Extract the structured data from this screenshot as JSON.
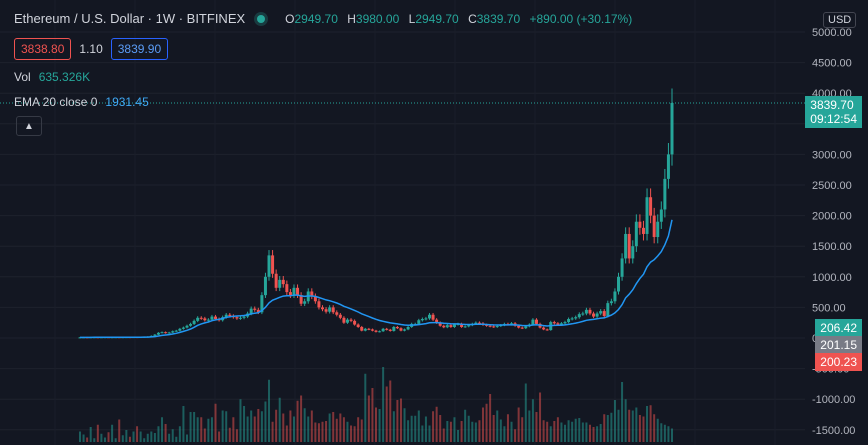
{
  "header": {
    "symbol_title": "Ethereum / U.S. Dollar · 1W · BITFINEX",
    "ohlc": {
      "o_label": "O",
      "o": "2949.70",
      "h_label": "H",
      "h": "3980.00",
      "l_label": "L",
      "l": "2949.70",
      "c_label": "C",
      "c": "3839.70",
      "change": "+890.00 (+30.17%)"
    },
    "bid": "3838.80",
    "spread": "1.10",
    "ask": "3839.90",
    "currency_button": "USD"
  },
  "indicators": {
    "vol_label": "Vol",
    "vol_value": "635.326K",
    "ema_label": "EMA 20 close 0",
    "ema_value": "1931.45"
  },
  "price_axis": {
    "last_price": "3839.70",
    "countdown": "09:12:54",
    "tag_green": "206.42",
    "tag_gray": "201.15",
    "tag_red": "200.23"
  },
  "colors": {
    "up": "#26a69a",
    "down": "#ef5350",
    "ema": "#2196f3",
    "background": "#131722"
  },
  "icons": {
    "collapse": "chevron-up-icon",
    "live": "live-dot-icon"
  },
  "chart_data": {
    "type": "candlestick",
    "ylim": [
      -1600,
      5100
    ],
    "y_ticks": [
      "5000.00",
      "4500.00",
      "4000.00",
      "3500.00",
      "3000.00",
      "2500.00",
      "2000.00",
      "1500.00",
      "1000.00",
      "500.00",
      "0.00",
      "-500.00",
      "-1000.00",
      "-1500.00"
    ],
    "close": [
      10,
      11,
      9,
      12,
      12,
      11,
      12,
      13,
      11,
      12,
      13,
      12,
      13,
      14,
      13,
      15,
      14,
      16,
      18,
      22,
      35,
      55,
      85,
      95,
      80,
      90,
      110,
      120,
      150,
      170,
      200,
      230,
      280,
      330,
      320,
      290,
      300,
      350,
      310,
      290,
      340,
      380,
      360,
      340,
      320,
      330,
      350,
      400,
      480,
      460,
      420,
      700,
      1000,
      1350,
      1050,
      820,
      950,
      880,
      750,
      700,
      820,
      700,
      560,
      600,
      760,
      680,
      600,
      500,
      470,
      430,
      500,
      420,
      380,
      330,
      250,
      300,
      280,
      220,
      180,
      120,
      150,
      140,
      120,
      100,
      110,
      150,
      135,
      115,
      180,
      160,
      120,
      140,
      180,
      230,
      230,
      290,
      310,
      320,
      380,
      300,
      250,
      200,
      175,
      210,
      180,
      220,
      230,
      180,
      190,
      210,
      230,
      250,
      240,
      215,
      200,
      190,
      180,
      195,
      210,
      230,
      220,
      240,
      200,
      170,
      160,
      190,
      220,
      300,
      230,
      170,
      140,
      130,
      260,
      240,
      220,
      240,
      260,
      310,
      320,
      340,
      390,
      400,
      460,
      400,
      350,
      400,
      440,
      360,
      570,
      600,
      760,
      1000,
      1300,
      1700,
      1300,
      1500,
      1900,
      1800,
      1700,
      2300,
      2000,
      1650,
      1900,
      2100,
      2600,
      3000,
      3840
    ],
    "ema20": [
      10,
      10,
      10,
      10,
      11,
      11,
      11,
      11,
      11,
      11,
      11,
      11,
      12,
      12,
      12,
      13,
      13,
      13,
      14,
      15,
      18,
      23,
      33,
      43,
      49,
      56,
      66,
      77,
      92,
      108,
      126,
      147,
      175,
      207,
      231,
      247,
      262,
      283,
      296,
      305,
      320,
      336,
      347,
      355,
      359,
      363,
      368,
      378,
      393,
      405,
      414,
      450,
      502,
      573,
      617,
      640,
      665,
      685,
      689,
      690,
      701,
      701,
      688,
      680,
      688,
      687,
      679,
      661,
      642,
      622,
      610,
      592,
      572,
      549,
      518,
      497,
      476,
      451,
      425,
      396,
      372,
      350,
      327,
      305,
      286,
      273,
      260,
      246,
      239,
      231,
      220,
      212,
      209,
      211,
      212,
      219,
      227,
      235,
      248,
      252,
      252,
      247,
      240,
      237,
      232,
      231,
      230,
      225,
      222,
      221,
      221,
      224,
      225,
      224,
      221,
      218,
      214,
      212,
      212,
      213,
      214,
      216,
      214,
      210,
      204,
      203,
      204,
      213,
      215,
      210,
      203,
      196,
      202,
      206,
      207,
      209,
      214,
      223,
      232,
      243,
      257,
      271,
      289,
      299,
      304,
      313,
      325,
      328,
      351,
      374,
      410,
      466,
      546,
      656,
      716,
      790,
      888,
      974,
      1043,
      1163,
      1241,
      1280,
      1340,
      1411,
      1525,
      1666,
      1931
    ],
    "volume": [
      0.14,
      0.1,
      0.06,
      0.2,
      0.05,
      0.23,
      0.11,
      0.06,
      0.13,
      0.23,
      0.05,
      0.3,
      0.09,
      0.16,
      0.07,
      0.14,
      0.21,
      0.14,
      0.05,
      0.11,
      0.14,
      0.12,
      0.21,
      0.33,
      0.24,
      0.11,
      0.17,
      0.07,
      0.21,
      0.48,
      0.1,
      0.4,
      0.4,
      0.33,
      0.33,
      0.18,
      0.31,
      0.33,
      0.51,
      0.14,
      0.42,
      0.41,
      0.19,
      0.33,
      0.17,
      0.57,
      0.48,
      0.34,
      0.42,
      0.34,
      0.44,
      0.41,
      0.54,
      0.83,
      0.27,
      0.43,
      0.59,
      0.38,
      0.22,
      0.42,
      0.34,
      0.55,
      0.62,
      0.45,
      0.34,
      0.42,
      0.26,
      0.25,
      0.27,
      0.28,
      0.38,
      0.4,
      0.31,
      0.38,
      0.33,
      0.27,
      0.22,
      0.21,
      0.33,
      0.3,
      0.91,
      0.62,
      0.72,
      0.46,
      0.44,
      1.0,
      0.74,
      0.82,
      0.41,
      0.56,
      0.58,
      0.45,
      0.29,
      0.35,
      0.35,
      0.42,
      0.22,
      0.34,
      0.22,
      0.41,
      0.47,
      0.36,
      0.18,
      0.28,
      0.27,
      0.33,
      0.16,
      0.28,
      0.43,
      0.35,
      0.27,
      0.26,
      0.29,
      0.46,
      0.51,
      0.64,
      0.36,
      0.42,
      0.3,
      0.21,
      0.37,
      0.27,
      0.17,
      0.46,
      0.33,
      0.78,
      0.42,
      0.57,
      0.4,
      0.66,
      0.29,
      0.27,
      0.21,
      0.28,
      0.33,
      0.26,
      0.23,
      0.29,
      0.27,
      0.31,
      0.32,
      0.26,
      0.26,
      0.23,
      0.2,
      0.21,
      0.24,
      0.37,
      0.36,
      0.39,
      0.56,
      0.43,
      0.8,
      0.57,
      0.43,
      0.42,
      0.46,
      0.36,
      0.34,
      0.48,
      0.49,
      0.37,
      0.31,
      0.25,
      0.23,
      0.21,
      0.18
    ]
  }
}
